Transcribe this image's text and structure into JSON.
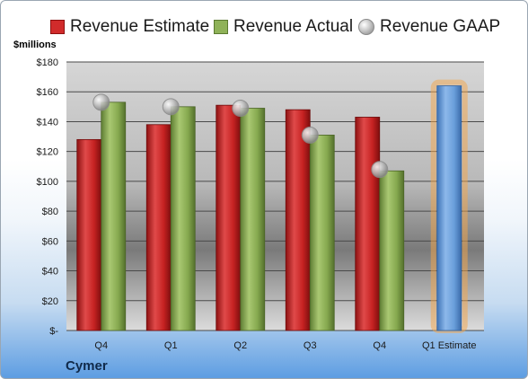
{
  "chart_data": {
    "type": "bar",
    "ylabel": "$millions",
    "xlabel": "Cymer",
    "categories": [
      "Q4",
      "Q1",
      "Q2",
      "Q3",
      "Q4",
      "Q1 Estimate"
    ],
    "ylim": [
      0,
      180
    ],
    "yticks": [
      0,
      20,
      40,
      60,
      80,
      100,
      120,
      140,
      160,
      180
    ],
    "ytick_labels": [
      "$-",
      "$20",
      "$40",
      "$60",
      "$80",
      "$100",
      "$120",
      "$140",
      "$160",
      "$180"
    ],
    "legend_position": "top",
    "grid": true,
    "series": [
      {
        "name": "Revenue Estimate",
        "kind": "bar",
        "color": "#d12b2b",
        "values": [
          128,
          138,
          151,
          148,
          143,
          null
        ]
      },
      {
        "name": "Revenue Actual",
        "kind": "bar",
        "color": "#8fb258",
        "values": [
          153,
          150,
          149,
          131,
          107,
          null
        ]
      },
      {
        "name": "Revenue GAAP",
        "kind": "marker",
        "color": "#a8a8a8",
        "values": [
          153,
          150,
          149,
          131,
          108,
          null
        ]
      }
    ],
    "forecast": {
      "category": "Q1 Estimate",
      "value": 164,
      "color": "#6a9fdb",
      "glow": "#f3a54a"
    }
  }
}
